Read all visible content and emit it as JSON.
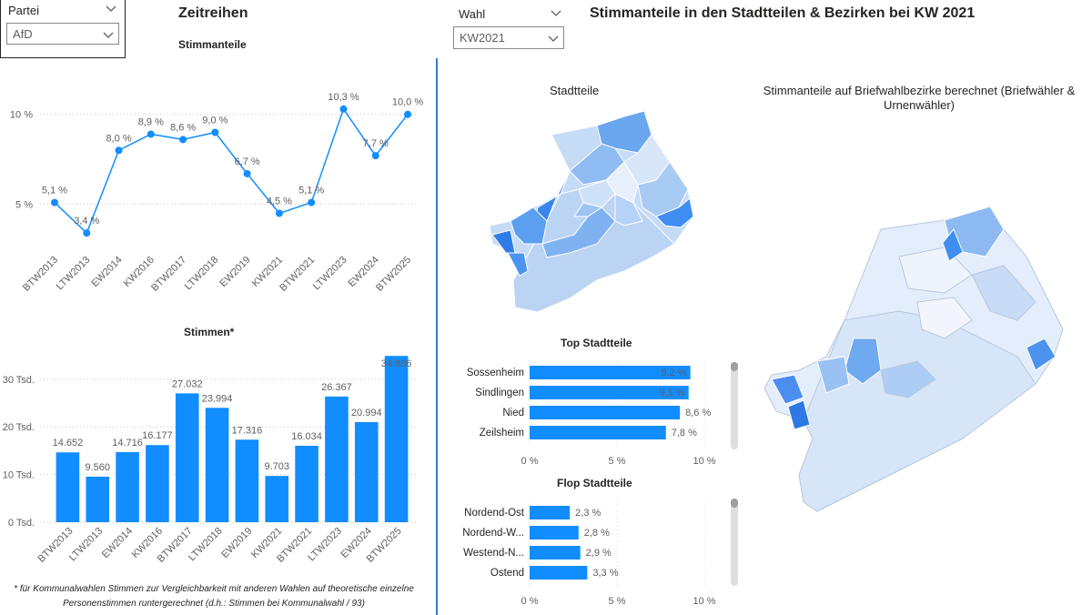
{
  "colors": {
    "accent": "#118DFF",
    "divider": "#3a7bd5",
    "map_light": "#dbe8fb",
    "map_mid": "#9cc2f2",
    "map_dark": "#3d8ef0"
  },
  "left_slicer": {
    "label": "Partei",
    "value": "AfD"
  },
  "right_slicer": {
    "label": "Wahl",
    "value": "KW2021"
  },
  "header": {
    "left_title": "Zeitreihen",
    "right_title": "Stimmanteile in den Stadtteilen & Bezirken bei KW 2021"
  },
  "line_chart_title": "Stimmanteile",
  "bar_chart_title": "Stimmen*",
  "map1_title": "Stadtteile",
  "map2_title": "Stimmanteile auf Briefwahlbezirke berechnet (Briefwähler & Urnenwähler)",
  "top_title": "Top Stadtteile",
  "flop_title": "Flop Stadtteile",
  "footnote_line1": "* für Kommunalwahlen Stimmen zur Vergleichbarkeit mit anderen Wahlen auf theoretische einzelne",
  "footnote_line2": "Personenstimmen runtergerechnet (d.h.: Stimmen bei Kommunalwahl / 93)",
  "chart_data": [
    {
      "type": "line",
      "title": "Stimmanteile",
      "categories": [
        "BTW2013",
        "LTW2013",
        "EW2014",
        "KW2016",
        "BTW2017",
        "LTW2018",
        "EW2019",
        "KW2021",
        "BTW2021",
        "LTW2023",
        "EW2024",
        "BTW2025"
      ],
      "values": [
        5.1,
        3.4,
        8.0,
        8.9,
        8.6,
        9.0,
        6.7,
        4.5,
        5.1,
        10.3,
        7.7,
        10.0
      ],
      "labels": [
        "5,1 %",
        "3,4 %",
        "8,0 %",
        "8,9 %",
        "8,6 %",
        "9,0 %",
        "6,7 %",
        "4,5 %",
        "5,1 %",
        "10,3 %",
        "7,7 %",
        "10,0 %"
      ],
      "y_ticks": [
        "5 %",
        "10 %"
      ],
      "grid": true
    },
    {
      "type": "bar",
      "title": "Stimmen*",
      "categories": [
        "BTW2013",
        "LTW2013",
        "EW2014",
        "KW2016",
        "BTW2017",
        "LTW2018",
        "EW2019",
        "KW2021",
        "BTW2021",
        "LTW2023",
        "EW2024",
        "BTW2025"
      ],
      "values": [
        14652,
        9560,
        14716,
        16177,
        27032,
        23994,
        17316,
        9703,
        16034,
        26367,
        20994,
        34886
      ],
      "labels": [
        "14.652",
        "9.560",
        "14.716",
        "16.177",
        "27.032",
        "23.994",
        "17.316",
        "9.703",
        "16.034",
        "26.367",
        "20.994",
        "34.886"
      ],
      "y_ticks": [
        "0 Tsd.",
        "10 Tsd.",
        "20 Tsd.",
        "30 Tsd."
      ],
      "grid": true
    },
    {
      "type": "bar",
      "title": "Top Stadtteile",
      "orientation": "horizontal",
      "categories": [
        "Sossenheim",
        "Sindlingen",
        "Nied",
        "Zeilsheim"
      ],
      "values": [
        9.2,
        9.1,
        8.6,
        7.8
      ],
      "labels": [
        "9,2 %",
        "9,1 %",
        "8,6 %",
        "7,8 %"
      ],
      "x_ticks": [
        "0 %",
        "5 %",
        "10 %"
      ]
    },
    {
      "type": "bar",
      "title": "Flop Stadtteile",
      "orientation": "horizontal",
      "categories": [
        "Nordend-Ost",
        "Nordend-W...",
        "Westend-N...",
        "Ostend"
      ],
      "values": [
        2.3,
        2.8,
        2.9,
        3.3
      ],
      "labels": [
        "2,3 %",
        "2,8 %",
        "2,9 %",
        "3,3 %"
      ],
      "x_ticks": [
        "0 %",
        "5 %",
        "10 %"
      ]
    }
  ]
}
